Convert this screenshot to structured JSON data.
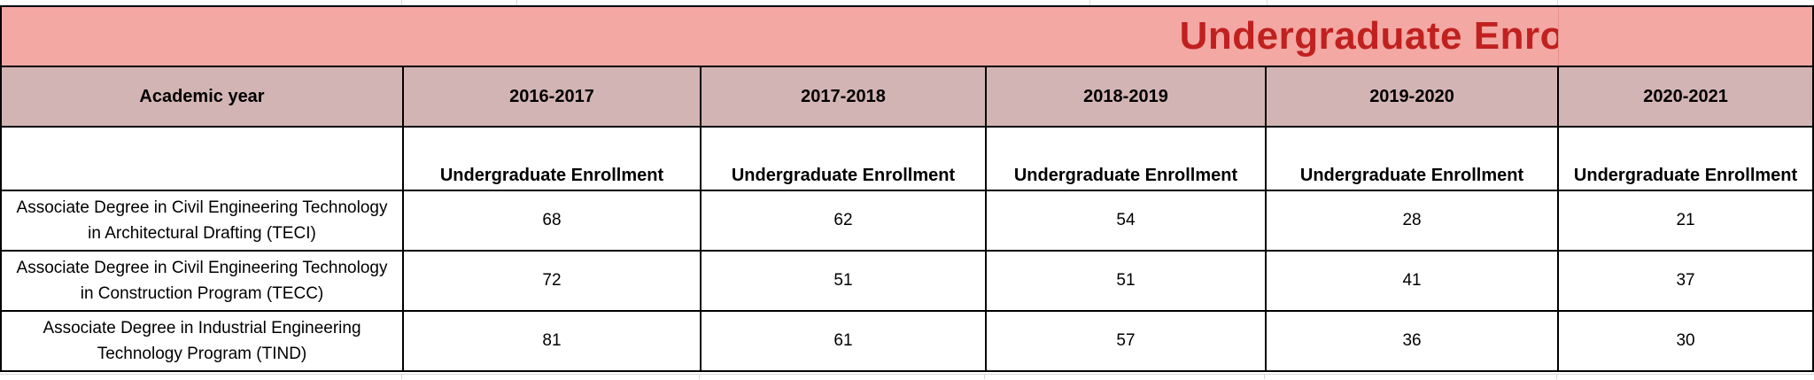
{
  "title": "Undergraduate Enrollment",
  "colors": {
    "title_bg": "#f4a8a4",
    "title_text": "#c0211f",
    "header_bg": "#d3b4b4"
  },
  "header": {
    "first_col": "Academic year",
    "years": [
      "2016-2017",
      "2017-2018",
      "2018-2019",
      "2019-2020",
      "2020-2021"
    ]
  },
  "subheader": {
    "labels": [
      "Undergraduate Enrollment",
      "Undergraduate Enrollment",
      "Undergraduate Enrollment",
      "Undergraduate Enrollment",
      "Undergraduate Enrollment"
    ]
  },
  "rows": [
    {
      "program_line1": "Associate Degree in Civil Engineering Technology",
      "program_line2": "in Architectural Drafting (TECI)",
      "values": [
        "68",
        "62",
        "54",
        "28",
        "21"
      ]
    },
    {
      "program_line1": "Associate Degree in Civil Engineering Technology",
      "program_line2": "in Construction Program (TECC)",
      "values": [
        "72",
        "51",
        "51",
        "41",
        "37"
      ]
    },
    {
      "program_line1": "Associate Degree in Industrial Engineering",
      "program_line2": "Technology Program (TIND)",
      "values": [
        "81",
        "61",
        "57",
        "36",
        "30"
      ]
    }
  ]
}
